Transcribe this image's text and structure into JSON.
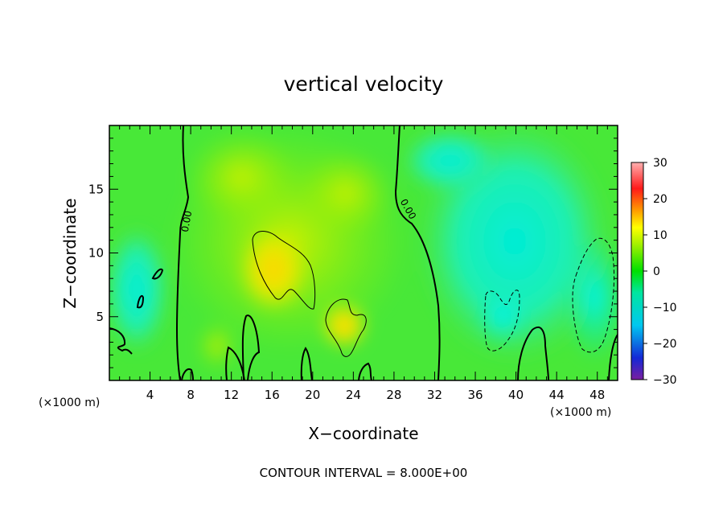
{
  "chart_data": {
    "type": "heatmap",
    "title": "vertical velocity",
    "xlabel": "X−coordinate",
    "ylabel": "Z−coordinate",
    "x_unit_label": "(×1000 m)",
    "z_unit_label": "(×1000 m)",
    "xlim": [
      0,
      50
    ],
    "ylim": [
      0,
      20
    ],
    "x_ticks": [
      4,
      8,
      12,
      16,
      20,
      24,
      28,
      32,
      36,
      40,
      44,
      48
    ],
    "y_ticks": [
      5,
      10,
      15
    ],
    "colorbar": {
      "range": [
        -30,
        30
      ],
      "ticks": [
        30,
        20,
        10,
        0,
        -10,
        -20,
        -30
      ],
      "tick_labels": [
        "30",
        "20",
        "10",
        "0",
        "−10",
        "−20",
        "−30"
      ]
    },
    "contour_interval_text": "CONTOUR INTERVAL = 8.000E+00",
    "contour_label": "0.00"
  }
}
